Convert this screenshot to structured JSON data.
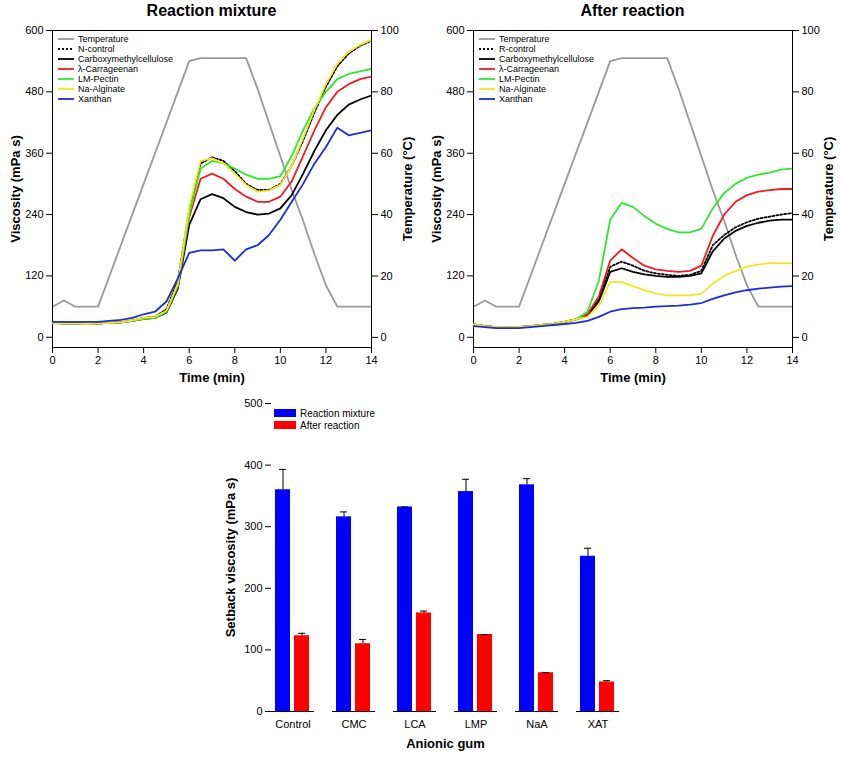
{
  "chart_data": [
    {
      "type": "line",
      "title": "Reaction mixture",
      "x_label": "Time (min)",
      "y_label": "Viscosity (mPa s)",
      "y2_label": "Temperature (°C)",
      "x": [
        0,
        0.5,
        1,
        1.5,
        2,
        2.5,
        3,
        3.5,
        4,
        4.5,
        5,
        5.5,
        6,
        6.5,
        7,
        7.5,
        8,
        8.5,
        9,
        9.5,
        10,
        10.5,
        11,
        11.5,
        12,
        12.5,
        13,
        13.5,
        14
      ],
      "xlim": [
        0,
        14
      ],
      "xticks": [
        0,
        2,
        4,
        6,
        8,
        10,
        12,
        14
      ],
      "ylim": [
        -20,
        600
      ],
      "yticks": [
        0,
        120,
        240,
        360,
        480,
        600
      ],
      "y2lim": [
        -3.3,
        100
      ],
      "y2ticks": [
        0,
        20,
        40,
        60,
        80,
        100
      ],
      "legend": "top-left",
      "series": [
        {
          "name": "Temperature",
          "color": "#999999",
          "axis": "y2",
          "values": [
            10,
            12,
            10,
            10,
            10,
            20,
            30,
            40,
            50,
            60,
            70,
            80,
            90,
            91,
            91,
            91,
            91,
            91,
            81,
            70,
            59,
            48,
            38,
            27,
            17,
            10,
            10,
            10,
            10
          ]
        },
        {
          "name": "N-control",
          "color": "#000000",
          "line_style": "dotted",
          "values": [
            28,
            27,
            27,
            26,
            27,
            28,
            29,
            33,
            38,
            40,
            55,
            110,
            250,
            340,
            352,
            345,
            325,
            300,
            288,
            288,
            300,
            335,
            385,
            440,
            490,
            530,
            555,
            570,
            580
          ]
        },
        {
          "name": "Carboxymethylcellulose",
          "color": "#000000",
          "values": [
            28,
            27,
            27,
            26,
            27,
            28,
            29,
            32,
            36,
            38,
            48,
            95,
            220,
            270,
            280,
            272,
            255,
            245,
            240,
            242,
            252,
            278,
            320,
            365,
            405,
            435,
            455,
            465,
            473
          ]
        },
        {
          "name": "λ-Carrageenan",
          "color": "#ee1c24",
          "values": [
            28,
            27,
            27,
            26,
            27,
            28,
            29,
            32,
            36,
            38,
            50,
            100,
            235,
            310,
            320,
            310,
            290,
            275,
            265,
            265,
            275,
            305,
            355,
            405,
            450,
            480,
            495,
            505,
            510
          ]
        },
        {
          "name": "LM-Pectin",
          "color": "#2ee82e",
          "values": [
            28,
            27,
            27,
            26,
            27,
            28,
            29,
            32,
            36,
            38,
            50,
            100,
            240,
            330,
            345,
            340,
            330,
            318,
            310,
            310,
            315,
            355,
            405,
            448,
            480,
            505,
            515,
            520,
            525
          ]
        },
        {
          "name": "Na-Alginate",
          "color": "#f5e620",
          "values": [
            28,
            27,
            27,
            26,
            27,
            28,
            29,
            33,
            38,
            40,
            52,
            105,
            255,
            345,
            350,
            340,
            320,
            298,
            285,
            287,
            298,
            335,
            390,
            445,
            495,
            535,
            558,
            572,
            582
          ]
        },
        {
          "name": "Xanthan",
          "color": "#1f2bd6",
          "values": [
            30,
            30,
            30,
            30,
            30,
            32,
            34,
            38,
            45,
            50,
            70,
            115,
            165,
            170,
            170,
            172,
            150,
            172,
            180,
            200,
            230,
            265,
            300,
            340,
            372,
            410,
            395,
            400,
            405
          ]
        }
      ]
    },
    {
      "type": "line",
      "title": "After reaction",
      "x_label": "Time (min)",
      "y_label": "Viscosity (mPa s)",
      "y2_label": "Temperature (°C)",
      "x": [
        0,
        0.5,
        1,
        1.5,
        2,
        2.5,
        3,
        3.5,
        4,
        4.5,
        5,
        5.5,
        6,
        6.5,
        7,
        7.5,
        8,
        8.5,
        9,
        9.5,
        10,
        10.5,
        11,
        11.5,
        12,
        12.5,
        13,
        13.5,
        14
      ],
      "xlim": [
        0,
        14
      ],
      "xticks": [
        0,
        2,
        4,
        6,
        8,
        10,
        12,
        14
      ],
      "ylim": [
        -20,
        600
      ],
      "yticks": [
        0,
        120,
        240,
        360,
        480,
        600
      ],
      "y2lim": [
        -3.3,
        100
      ],
      "y2ticks": [
        0,
        20,
        40,
        60,
        80,
        100
      ],
      "legend": "top-left",
      "series": [
        {
          "name": "Temperature",
          "color": "#999999",
          "axis": "y2",
          "values": [
            10,
            12,
            10,
            10,
            10,
            20,
            30,
            40,
            50,
            60,
            70,
            80,
            90,
            91,
            91,
            91,
            91,
            91,
            81,
            70,
            59,
            48,
            38,
            27,
            17,
            10,
            10,
            10,
            10
          ]
        },
        {
          "name": "R-control",
          "color": "#000000",
          "line_style": "dotted",
          "values": [
            25,
            22,
            20,
            20,
            20,
            22,
            24,
            26,
            30,
            35,
            45,
            75,
            138,
            148,
            140,
            130,
            125,
            122,
            120,
            122,
            130,
            180,
            200,
            215,
            225,
            232,
            236,
            240,
            243
          ]
        },
        {
          "name": "Carboxymethylcellulose",
          "color": "#000000",
          "values": [
            25,
            22,
            20,
            20,
            20,
            22,
            24,
            26,
            30,
            35,
            42,
            70,
            128,
            135,
            128,
            123,
            120,
            118,
            118,
            120,
            125,
            168,
            193,
            208,
            218,
            224,
            228,
            230,
            230
          ]
        },
        {
          "name": "λ-Carrageenan",
          "color": "#ee1c24",
          "values": [
            25,
            22,
            20,
            20,
            20,
            22,
            24,
            26,
            30,
            35,
            45,
            80,
            150,
            172,
            155,
            140,
            133,
            130,
            128,
            130,
            140,
            198,
            240,
            265,
            278,
            285,
            288,
            290,
            290
          ]
        },
        {
          "name": "LM-Pectin",
          "color": "#2ee82e",
          "values": [
            25,
            22,
            20,
            20,
            20,
            22,
            24,
            26,
            30,
            35,
            50,
            110,
            230,
            263,
            255,
            237,
            222,
            212,
            205,
            205,
            212,
            252,
            282,
            300,
            312,
            318,
            322,
            328,
            330
          ]
        },
        {
          "name": "Na-Alginate",
          "color": "#f5e620",
          "values": [
            25,
            22,
            20,
            20,
            20,
            22,
            24,
            26,
            30,
            35,
            40,
            62,
            108,
            108,
            100,
            92,
            86,
            82,
            82,
            82,
            85,
            105,
            120,
            130,
            138,
            142,
            145,
            145,
            145
          ]
        },
        {
          "name": "Xanthan",
          "color": "#1f2bd6",
          "values": [
            22,
            20,
            18,
            18,
            18,
            20,
            22,
            24,
            26,
            28,
            32,
            40,
            50,
            55,
            57,
            58,
            60,
            61,
            62,
            64,
            67,
            75,
            82,
            88,
            92,
            95,
            97,
            99,
            100
          ]
        }
      ]
    },
    {
      "type": "bar",
      "x_label": "Anionic gum",
      "y_label": "Setback viscosity (mPa s)",
      "categories": [
        "Control",
        "CMC",
        "LCA",
        "LMP",
        "NaA",
        "XAT"
      ],
      "ylim": [
        0,
        500
      ],
      "yticks": [
        0,
        100,
        200,
        300,
        400,
        500
      ],
      "legend": "top-left",
      "series": [
        {
          "name": "Reaction mixture",
          "color": "#0000ff",
          "values": [
            360,
            316,
            332,
            357,
            368,
            252
          ],
          "errors": [
            33,
            8,
            0,
            20,
            10,
            13
          ]
        },
        {
          "name": "After reaction",
          "color": "#ff0000",
          "values": [
            123,
            110,
            160,
            125,
            63,
            48
          ],
          "errors": [
            4,
            7,
            3,
            0,
            0,
            2
          ]
        }
      ]
    }
  ]
}
